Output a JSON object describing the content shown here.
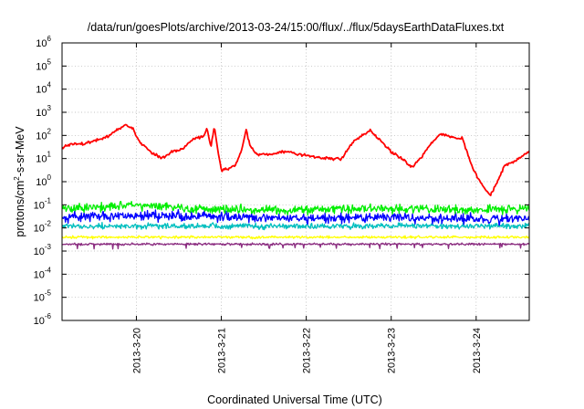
{
  "chart_data": {
    "type": "line",
    "title": "/data/run/goesPlots/archive/2013-03-24/15:00/flux/../flux/5daysEarthDataFluxes.txt",
    "xlabel": "Coordinated Universal Time (UTC)",
    "ylabel": "protons/cm²-s-sr-MeV",
    "ylabel_base": "protons/cm",
    "ylabel_sup": "2",
    "ylabel_rest": "-s-sr-MeV",
    "y_scale": "log",
    "ylim": [
      1e-06,
      1000000.0
    ],
    "y_ticks": [
      {
        "base": "10",
        "exp": "-6",
        "value": 1e-06
      },
      {
        "base": "10",
        "exp": "-5",
        "value": 1e-05
      },
      {
        "base": "10",
        "exp": "-4",
        "value": 0.0001
      },
      {
        "base": "10",
        "exp": "-3",
        "value": 0.001
      },
      {
        "base": "10",
        "exp": "-2",
        "value": 0.01
      },
      {
        "base": "10",
        "exp": "-1",
        "value": 0.1
      },
      {
        "base": "10",
        "exp": "0",
        "value": 1
      },
      {
        "base": "10",
        "exp": "1",
        "value": 10
      },
      {
        "base": "10",
        "exp": "2",
        "value": 100
      },
      {
        "base": "10",
        "exp": "3",
        "value": 1000
      },
      {
        "base": "10",
        "exp": "4",
        "value": 10000
      },
      {
        "base": "10",
        "exp": "5",
        "value": 100000
      },
      {
        "base": "10",
        "exp": "6",
        "value": 1000000
      }
    ],
    "xlim": [
      "2013-03-19 03:00",
      "2013-03-24 15:00"
    ],
    "x_ticks": [
      {
        "label": "2013-3-20",
        "value": "2013-03-20 00:00"
      },
      {
        "label": "2013-3-21",
        "value": "2013-03-21 00:00"
      },
      {
        "label": "2013-3-22",
        "value": "2013-03-22 00:00"
      },
      {
        "label": "2013-3-23",
        "value": "2013-03-23 00:00"
      },
      {
        "label": "2013-3-24",
        "value": "2013-03-24 00:00"
      }
    ],
    "grid": true,
    "series": [
      {
        "color": "#ff0000",
        "style": "smooth",
        "points": [
          [
            "2013-03-19 03:00",
            30
          ],
          [
            "2013-03-19 06:00",
            45
          ],
          [
            "2013-03-19 09:00",
            40
          ],
          [
            "2013-03-19 12:00",
            60
          ],
          [
            "2013-03-19 15:00",
            75
          ],
          [
            "2013-03-19 18:00",
            150
          ],
          [
            "2013-03-19 21:00",
            300
          ],
          [
            "2013-03-19 23:00",
            200
          ],
          [
            "2013-03-20 01:00",
            50
          ],
          [
            "2013-03-20 04:00",
            20
          ],
          [
            "2013-03-20 07:00",
            10
          ],
          [
            "2013-03-20 10:00",
            20
          ],
          [
            "2013-03-20 13:00",
            25
          ],
          [
            "2013-03-20 16:00",
            70
          ],
          [
            "2013-03-20 19:00",
            90
          ],
          [
            "2013-03-20 20:00",
            200
          ],
          [
            "2013-03-20 21:00",
            30
          ],
          [
            "2013-03-20 22:00",
            220
          ],
          [
            "2013-03-21 00:00",
            3
          ],
          [
            "2013-03-21 04:00",
            5
          ],
          [
            "2013-03-21 06:00",
            30
          ],
          [
            "2013-03-21 07:00",
            200
          ],
          [
            "2013-03-21 08:00",
            40
          ],
          [
            "2013-03-21 10:00",
            15
          ],
          [
            "2013-03-21 14:00",
            15
          ],
          [
            "2013-03-21 18:00",
            20
          ],
          [
            "2013-03-21 22:00",
            15
          ],
          [
            "2013-03-22 02:00",
            12
          ],
          [
            "2013-03-22 06:00",
            10
          ],
          [
            "2013-03-22 10:00",
            10
          ],
          [
            "2013-03-22 13:00",
            50
          ],
          [
            "2013-03-22 16:00",
            100
          ],
          [
            "2013-03-22 18:00",
            180
          ],
          [
            "2013-03-22 22:00",
            40
          ],
          [
            "2013-03-23 00:00",
            20
          ],
          [
            "2013-03-23 03:00",
            10
          ],
          [
            "2013-03-23 06:00",
            4
          ],
          [
            "2013-03-23 09:00",
            15
          ],
          [
            "2013-03-23 12:00",
            60
          ],
          [
            "2013-03-23 14:00",
            120
          ],
          [
            "2013-03-23 18:00",
            80
          ],
          [
            "2013-03-23 20:00",
            80
          ],
          [
            "2013-03-23 23:00",
            4
          ],
          [
            "2013-03-24 02:00",
            0.6
          ],
          [
            "2013-03-24 04:00",
            0.25
          ],
          [
            "2013-03-24 06:00",
            1
          ],
          [
            "2013-03-24 08:00",
            5
          ],
          [
            "2013-03-24 11:00",
            8
          ],
          [
            "2013-03-24 15:00",
            20
          ]
        ]
      },
      {
        "color": "#00ee00",
        "style": "noisy",
        "points": [
          [
            "2013-03-19 03:00",
            0.07
          ],
          [
            "2013-03-20 00:00",
            0.1
          ],
          [
            "2013-03-21 00:00",
            0.06
          ],
          [
            "2013-03-22 00:00",
            0.06
          ],
          [
            "2013-03-23 00:00",
            0.07
          ],
          [
            "2013-03-24 00:00",
            0.06
          ],
          [
            "2013-03-24 15:00",
            0.07
          ]
        ]
      },
      {
        "color": "#0000ff",
        "style": "noisy",
        "points": [
          [
            "2013-03-19 03:00",
            0.03
          ],
          [
            "2013-03-20 00:00",
            0.035
          ],
          [
            "2013-03-21 00:00",
            0.03
          ],
          [
            "2013-03-22 00:00",
            0.025
          ],
          [
            "2013-03-23 00:00",
            0.03
          ],
          [
            "2013-03-24 00:00",
            0.025
          ],
          [
            "2013-03-24 15:00",
            0.025
          ]
        ]
      },
      {
        "color": "#00bfbf",
        "style": "noisy",
        "points": [
          [
            "2013-03-19 03:00",
            0.012
          ],
          [
            "2013-03-24 15:00",
            0.012
          ]
        ]
      },
      {
        "color": "#ffff00",
        "style": "noisy",
        "points": [
          [
            "2013-03-19 03:00",
            0.004
          ],
          [
            "2013-03-24 15:00",
            0.004
          ]
        ]
      },
      {
        "color": "#8b2d80",
        "style": "noisy",
        "points": [
          [
            "2013-03-19 03:00",
            0.002
          ],
          [
            "2013-03-24 15:00",
            0.002
          ]
        ]
      }
    ]
  }
}
